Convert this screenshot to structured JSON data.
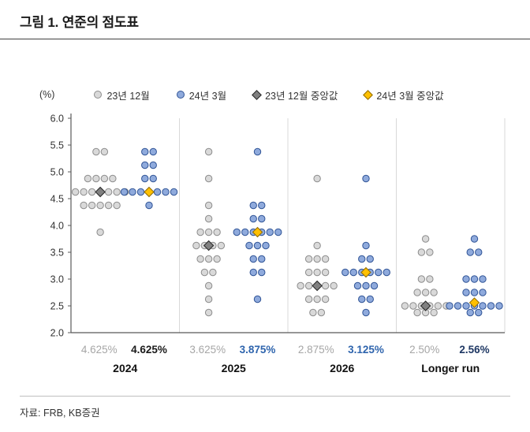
{
  "page": {
    "title": "그림 1. 연준의 점도표",
    "source": "자료: FRB, KB증권"
  },
  "legend": {
    "items": [
      {
        "label": "23년 12월",
        "marker": "circle",
        "color": "#d9d9d9",
        "stroke": "#8c8c8c"
      },
      {
        "label": "24년 3월",
        "marker": "circle",
        "color": "#8faadc",
        "stroke": "#305496"
      },
      {
        "label": "23년 12월 중앙값",
        "marker": "diamond",
        "color": "#808080",
        "stroke": "#262626"
      },
      {
        "label": "24년 3월 중앙값",
        "marker": "diamond",
        "color": "#ffc000",
        "stroke": "#8f6a00"
      }
    ]
  },
  "chart_data": {
    "type": "scatter",
    "title": "연준의 점도표 (Fed dot plot)",
    "xlabel": "",
    "ylabel": "(%)",
    "ylim": [
      2.0,
      6.0
    ],
    "yticks": [
      6.0,
      5.5,
      5.0,
      4.5,
      4.0,
      3.5,
      3.0,
      2.5,
      2.0
    ],
    "grid": "group-separators",
    "legend_position": "top",
    "series_names": [
      "23년 12월",
      "24년 3월",
      "23년 12월 중앙값",
      "24년 3월 중앙값"
    ],
    "groups": [
      {
        "label": "2024",
        "dec23_dots": {
          "5.375": 2,
          "4.875": 4,
          "4.625": 7,
          "4.375": 5,
          "3.875": 1
        },
        "mar24_dots": {
          "5.375": 2,
          "5.125": 2,
          "4.875": 2,
          "4.625": 7,
          "4.375": 1
        },
        "dec23_median": 4.625,
        "mar24_median": 4.625,
        "dec23_median_label": "4.625%",
        "mar24_median_label": "4.625%",
        "mar24_label_color": "#1a1a1a"
      },
      {
        "label": "2025",
        "dec23_dots": {
          "5.375": 1,
          "4.875": 1,
          "4.375": 1,
          "4.125": 1,
          "3.875": 3,
          "3.625": 4,
          "3.375": 3,
          "3.125": 2,
          "2.875": 1,
          "2.625": 1,
          "2.375": 1
        },
        "mar24_dots": {
          "5.375": 1,
          "4.375": 2,
          "4.125": 2,
          "3.875": 6,
          "3.625": 3,
          "3.375": 2,
          "3.125": 2,
          "2.625": 1
        },
        "dec23_median": 3.625,
        "mar24_median": 3.875,
        "dec23_median_label": "3.625%",
        "mar24_median_label": "3.875%",
        "mar24_label_color": "#2e64ad"
      },
      {
        "label": "2026",
        "dec23_dots": {
          "4.875": 1,
          "3.625": 1,
          "3.375": 3,
          "3.125": 3,
          "2.875": 5,
          "2.625": 3,
          "2.375": 2
        },
        "mar24_dots": {
          "4.875": 1,
          "3.625": 1,
          "3.375": 2,
          "3.125": 6,
          "2.875": 3,
          "2.625": 2,
          "2.375": 1
        },
        "dec23_median": 2.875,
        "mar24_median": 3.125,
        "dec23_median_label": "2.875%",
        "mar24_median_label": "3.125%",
        "mar24_label_color": "#2e64ad"
      },
      {
        "label": "Longer run",
        "dec23_dots": {
          "3.75": 1,
          "3.5": 2,
          "3.0": 2,
          "2.75": 3,
          "2.5": 6,
          "2.375": 3
        },
        "mar24_dots": {
          "3.75": 1,
          "3.5": 2,
          "3.0": 3,
          "2.75": 3,
          "2.5": 7,
          "2.375": 2
        },
        "dec23_median": 2.5,
        "mar24_median": 2.56,
        "dec23_median_label": "2.50%",
        "mar24_median_label": "2.56%",
        "mar24_label_color": "#1f3864"
      }
    ]
  }
}
